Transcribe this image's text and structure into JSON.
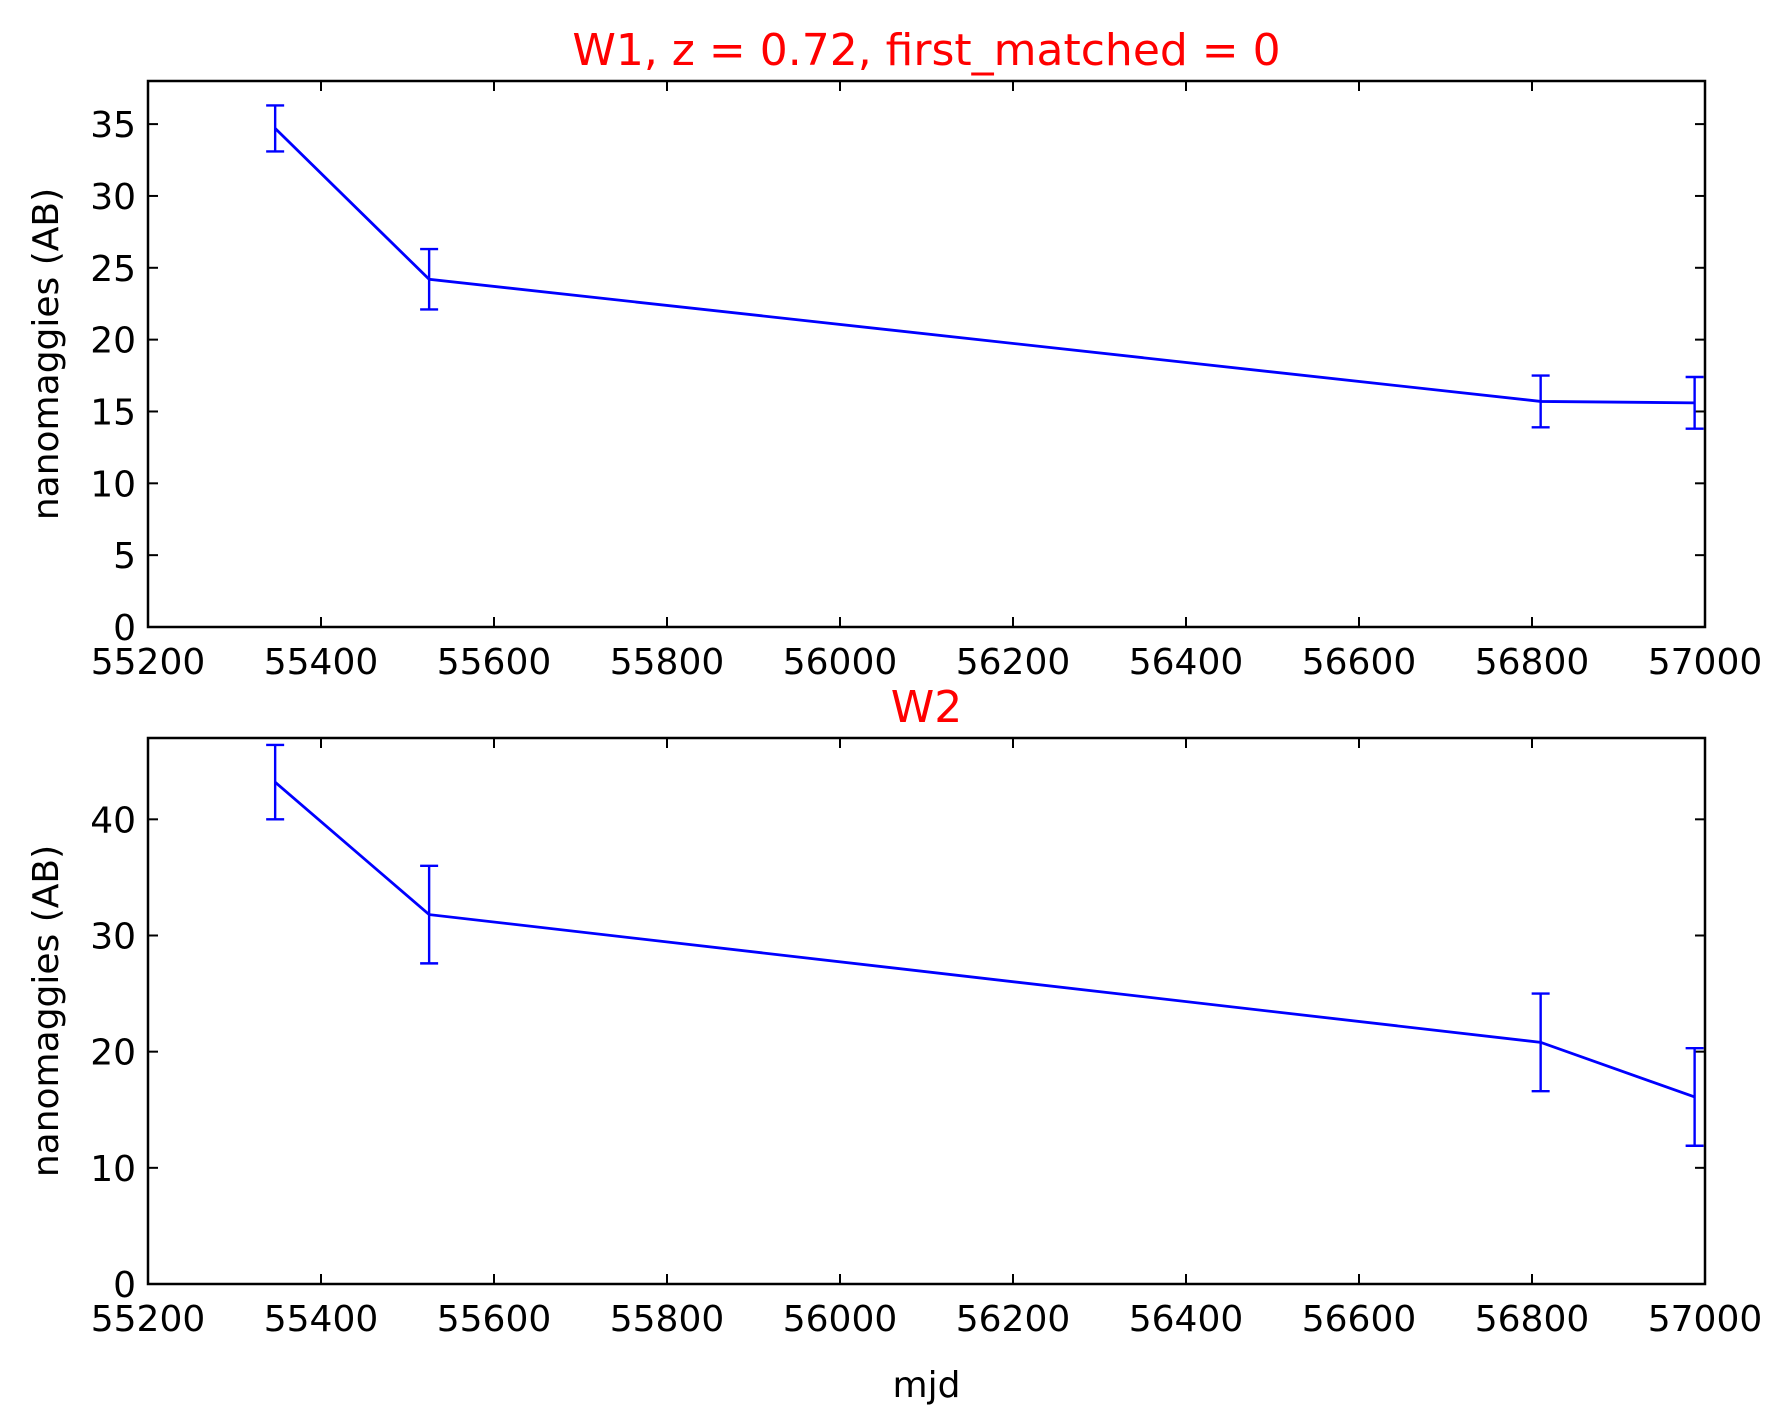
{
  "chart_data": [
    {
      "type": "line",
      "title": "W1, z = 0.72, first_matched = 0",
      "xlabel": "",
      "ylabel": "nanomaggies (AB)",
      "xlim": [
        55200,
        57000
      ],
      "ylim": [
        0,
        38
      ],
      "x_ticks": [
        55200,
        55400,
        55600,
        55800,
        56000,
        56200,
        56400,
        56600,
        56800,
        57000
      ],
      "y_ticks": [
        0,
        5,
        10,
        15,
        20,
        25,
        30,
        35
      ],
      "series": [
        {
          "color": "#0000ff",
          "points": [
            {
              "x": 55347,
              "y": 34.7,
              "err": 1.6
            },
            {
              "x": 55525,
              "y": 24.2,
              "err": 2.1
            },
            {
              "x": 56810,
              "y": 15.7,
              "err": 1.8
            },
            {
              "x": 56988,
              "y": 15.6,
              "err": 1.8
            }
          ]
        }
      ]
    },
    {
      "type": "line",
      "title": "W2",
      "xlabel": "mjd",
      "ylabel": "nanomaggies (AB)",
      "xlim": [
        55200,
        57000
      ],
      "ylim": [
        0,
        47
      ],
      "x_ticks": [
        55200,
        55400,
        55600,
        55800,
        56000,
        56200,
        56400,
        56600,
        56800,
        57000
      ],
      "y_ticks": [
        0,
        10,
        20,
        30,
        40
      ],
      "series": [
        {
          "color": "#0000ff",
          "points": [
            {
              "x": 55347,
              "y": 43.2,
              "err": 3.2
            },
            {
              "x": 55525,
              "y": 31.8,
              "err": 4.2
            },
            {
              "x": 56810,
              "y": 20.8,
              "err": 4.2
            },
            {
              "x": 56988,
              "y": 16.1,
              "err": 4.2
            }
          ]
        }
      ]
    }
  ]
}
